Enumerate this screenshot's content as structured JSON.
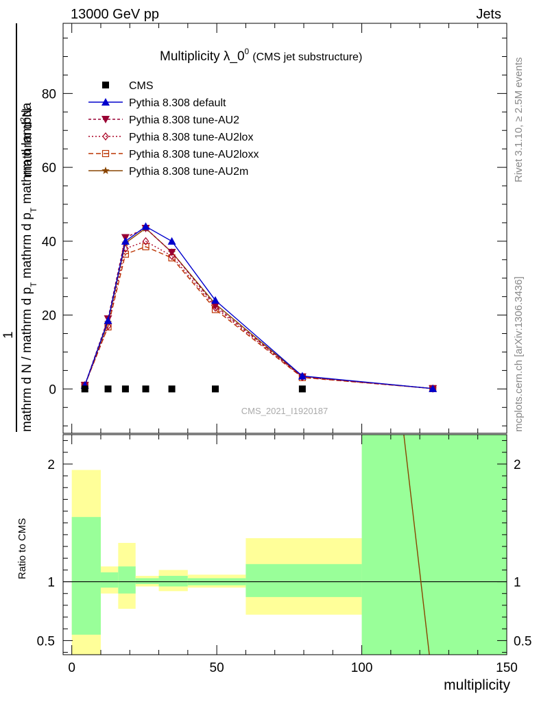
{
  "header": {
    "left": "13000 GeV pp",
    "right": "Jets"
  },
  "side_labels": {
    "rivet": "Rivet 3.1.10, ≥ 2.5M events",
    "mcplots": "mcplots.cern.ch [arXiv:1306.3436]"
  },
  "watermark": "CMS_2021_I1920187",
  "title": {
    "main": "Multiplicity λ_0",
    "sup": "0",
    "sub": "(CMS jet substructure)"
  },
  "ylabel": {
    "num": "mathrm d",
    "num_sup": "2",
    "num_end": "N",
    "one": "1",
    "den_a": "mathrm d N / mathrm d p",
    "den_sub1": "T",
    "den_b": " mathrm d p",
    "den_sub2": "T",
    "den_c": " mathrm d lambda"
  },
  "ratio_ylabel": "Ratio to CMS",
  "xlabel": "multiplicity",
  "colors": {
    "cms": "#000000",
    "default": "#0000cc",
    "au2": "#990033",
    "au2lox": "#aa0022",
    "au2loxx": "#bb3300",
    "au2m": "#884400",
    "band_inner": "#99ff99",
    "band_outer": "#ffff99"
  },
  "chart_data": [
    {
      "type": "line",
      "xlim": [
        -3,
        150
      ],
      "ylim": [
        -12,
        99
      ],
      "yticks": [
        0,
        20,
        40,
        60,
        80
      ],
      "x": [
        4.5,
        12.5,
        18.5,
        25.5,
        34.5,
        49.5,
        79.5,
        124.5
      ],
      "series": [
        {
          "name": "CMS",
          "key": "cms",
          "values": [
            0,
            0,
            0,
            0,
            0,
            0,
            0,
            null
          ]
        },
        {
          "name": "Pythia 8.308 default",
          "key": "default",
          "values": [
            1.0,
            18.5,
            40.0,
            44.0,
            40.0,
            24.0,
            3.5,
            0.1
          ]
        },
        {
          "name": "Pythia 8.308 tune-AU2",
          "key": "au2",
          "values": [
            1.0,
            19.0,
            41.0,
            43.5,
            37.0,
            22.5,
            3.3,
            0.1
          ]
        },
        {
          "name": "Pythia 8.308 tune-AU2lox",
          "key": "au2lox",
          "values": [
            1.0,
            17.0,
            38.0,
            40.0,
            36.0,
            22.0,
            3.2,
            0.1
          ]
        },
        {
          "name": "Pythia 8.308 tune-AU2loxx",
          "key": "au2loxx",
          "values": [
            1.0,
            16.8,
            36.5,
            38.5,
            35.5,
            21.5,
            3.1,
            0.1
          ]
        },
        {
          "name": "Pythia 8.308 tune-AU2m",
          "key": "au2m",
          "values": [
            1.0,
            18.0,
            39.5,
            43.5,
            37.0,
            23.0,
            3.4,
            0.1
          ]
        }
      ]
    },
    {
      "type": "area",
      "ylabel": "Ratio to CMS",
      "xlabel": "multiplicity",
      "xlim": [
        -3,
        150
      ],
      "ylim": [
        0.38,
        2.25
      ],
      "xticks": [
        0,
        50,
        100,
        150
      ],
      "yticks": [
        0.5,
        1,
        2
      ],
      "bands": [
        {
          "x0": 0,
          "x1": 10,
          "inner": [
            0.55,
            1.55
          ],
          "outer": [
            0,
            1.95
          ]
        },
        {
          "x0": 10,
          "x1": 16,
          "inner": [
            0.95,
            1.08
          ],
          "outer": [
            0.9,
            1.13
          ]
        },
        {
          "x0": 16,
          "x1": 22,
          "inner": [
            0.9,
            1.13
          ],
          "outer": [
            0.77,
            1.33
          ]
        },
        {
          "x0": 22,
          "x1": 30,
          "inner": [
            0.98,
            1.03
          ],
          "outer": [
            0.96,
            1.05
          ]
        },
        {
          "x0": 30,
          "x1": 40,
          "inner": [
            0.96,
            1.05
          ],
          "outer": [
            0.92,
            1.1
          ]
        },
        {
          "x0": 40,
          "x1": 60,
          "inner": [
            0.97,
            1.03
          ],
          "outer": [
            0.95,
            1.06
          ]
        },
        {
          "x0": 60,
          "x1": 100,
          "inner": [
            0.87,
            1.15
          ],
          "outer": [
            0.72,
            1.37
          ]
        },
        {
          "x0": 100,
          "x1": 150,
          "inner": [
            0,
            3
          ],
          "outer": [
            0,
            3
          ]
        }
      ],
      "reference": 1,
      "mc_line": {
        "x": [
          114.5,
          123.3
        ],
        "y": [
          2.25,
          0.38
        ]
      }
    }
  ]
}
